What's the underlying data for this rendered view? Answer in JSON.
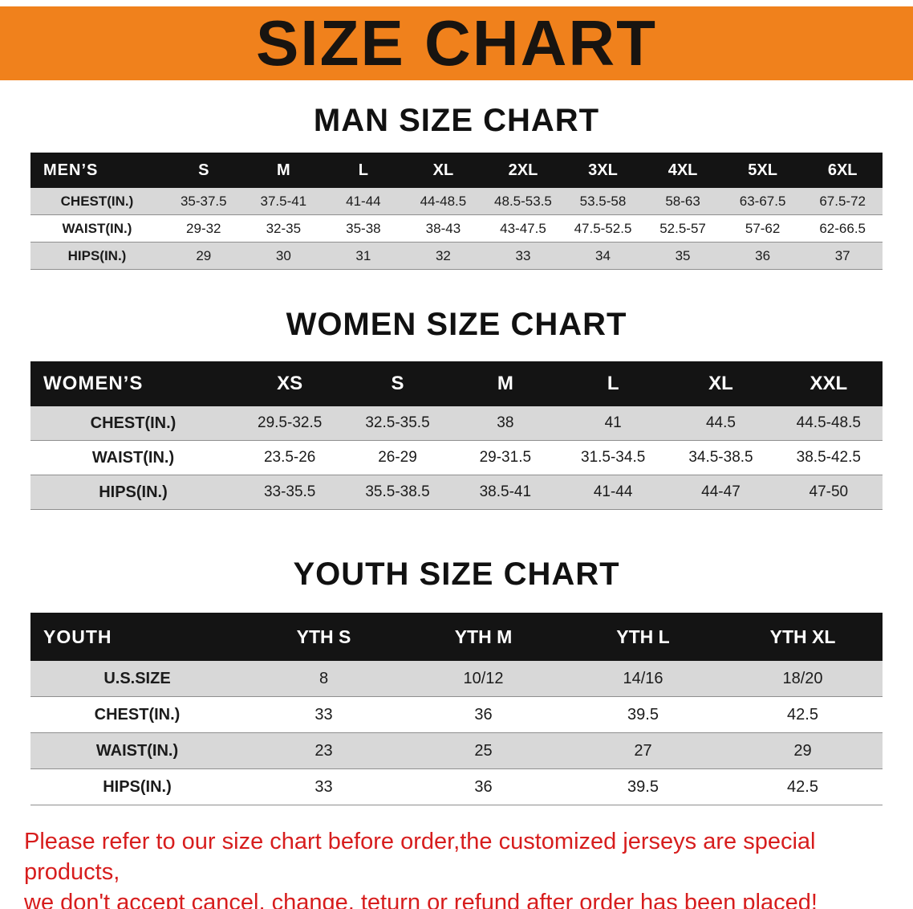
{
  "banner": {
    "title": "SIZE CHART"
  },
  "colors": {
    "banner_bg": "#f0811c",
    "header_bar": "#141414",
    "row_shade": "#d8d8d8",
    "footer_red": "#d71d1d"
  },
  "sections": [
    {
      "heading": "MAN SIZE CHART",
      "table": {
        "name": "mens",
        "label": "MEN’S",
        "columns": [
          "S",
          "M",
          "L",
          "XL",
          "2XL",
          "3XL",
          "4XL",
          "5XL",
          "6XL"
        ],
        "rows": [
          {
            "label": "CHEST(IN.)",
            "values": [
              "35-37.5",
              "37.5-41",
              "41-44",
              "44-48.5",
              "48.5-53.5",
              "53.5-58",
              "58-63",
              "63-67.5",
              "67.5-72"
            ]
          },
          {
            "label": "WAIST(IN.)",
            "values": [
              "29-32",
              "32-35",
              "35-38",
              "38-43",
              "43-47.5",
              "47.5-52.5",
              "52.5-57",
              "57-62",
              "62-66.5"
            ]
          },
          {
            "label": "HIPS(IN.)",
            "values": [
              "29",
              "30",
              "31",
              "32",
              "33",
              "34",
              "35",
              "36",
              "37"
            ]
          }
        ]
      }
    },
    {
      "heading": "WOMEN SIZE CHART",
      "table": {
        "name": "womens",
        "label": "WOMEN’S",
        "columns": [
          "XS",
          "S",
          "M",
          "L",
          "XL",
          "XXL"
        ],
        "rows": [
          {
            "label": "CHEST(IN.)",
            "values": [
              "29.5-32.5",
              "32.5-35.5",
              "38",
              "41",
              "44.5",
              "44.5-48.5"
            ]
          },
          {
            "label": "WAIST(IN.)",
            "values": [
              "23.5-26",
              "26-29",
              "29-31.5",
              "31.5-34.5",
              "34.5-38.5",
              "38.5-42.5"
            ]
          },
          {
            "label": "HIPS(IN.)",
            "values": [
              "33-35.5",
              "35.5-38.5",
              "38.5-41",
              "41-44",
              "44-47",
              "47-50"
            ]
          }
        ]
      }
    },
    {
      "heading": "YOUTH SIZE CHART",
      "table": {
        "name": "youth",
        "label": "YOUTH",
        "columns": [
          "YTH S",
          "YTH M",
          "YTH L",
          "YTH XL"
        ],
        "rows": [
          {
            "label": "U.S.SIZE",
            "values": [
              "8",
              "10/12",
              "14/16",
              "18/20"
            ]
          },
          {
            "label": "CHEST(IN.)",
            "values": [
              "33",
              "36",
              "39.5",
              "42.5"
            ]
          },
          {
            "label": "WAIST(IN.)",
            "values": [
              "23",
              "25",
              "27",
              "29"
            ]
          },
          {
            "label": "HIPS(IN.)",
            "values": [
              "33",
              "36",
              "39.5",
              "42.5"
            ]
          }
        ]
      }
    }
  ],
  "footer": {
    "line1": "Please refer to our size chart before order,the customized jerseys are special products,",
    "line2": "we don't accept cancel, change, teturn or refund after order has been placed!"
  }
}
